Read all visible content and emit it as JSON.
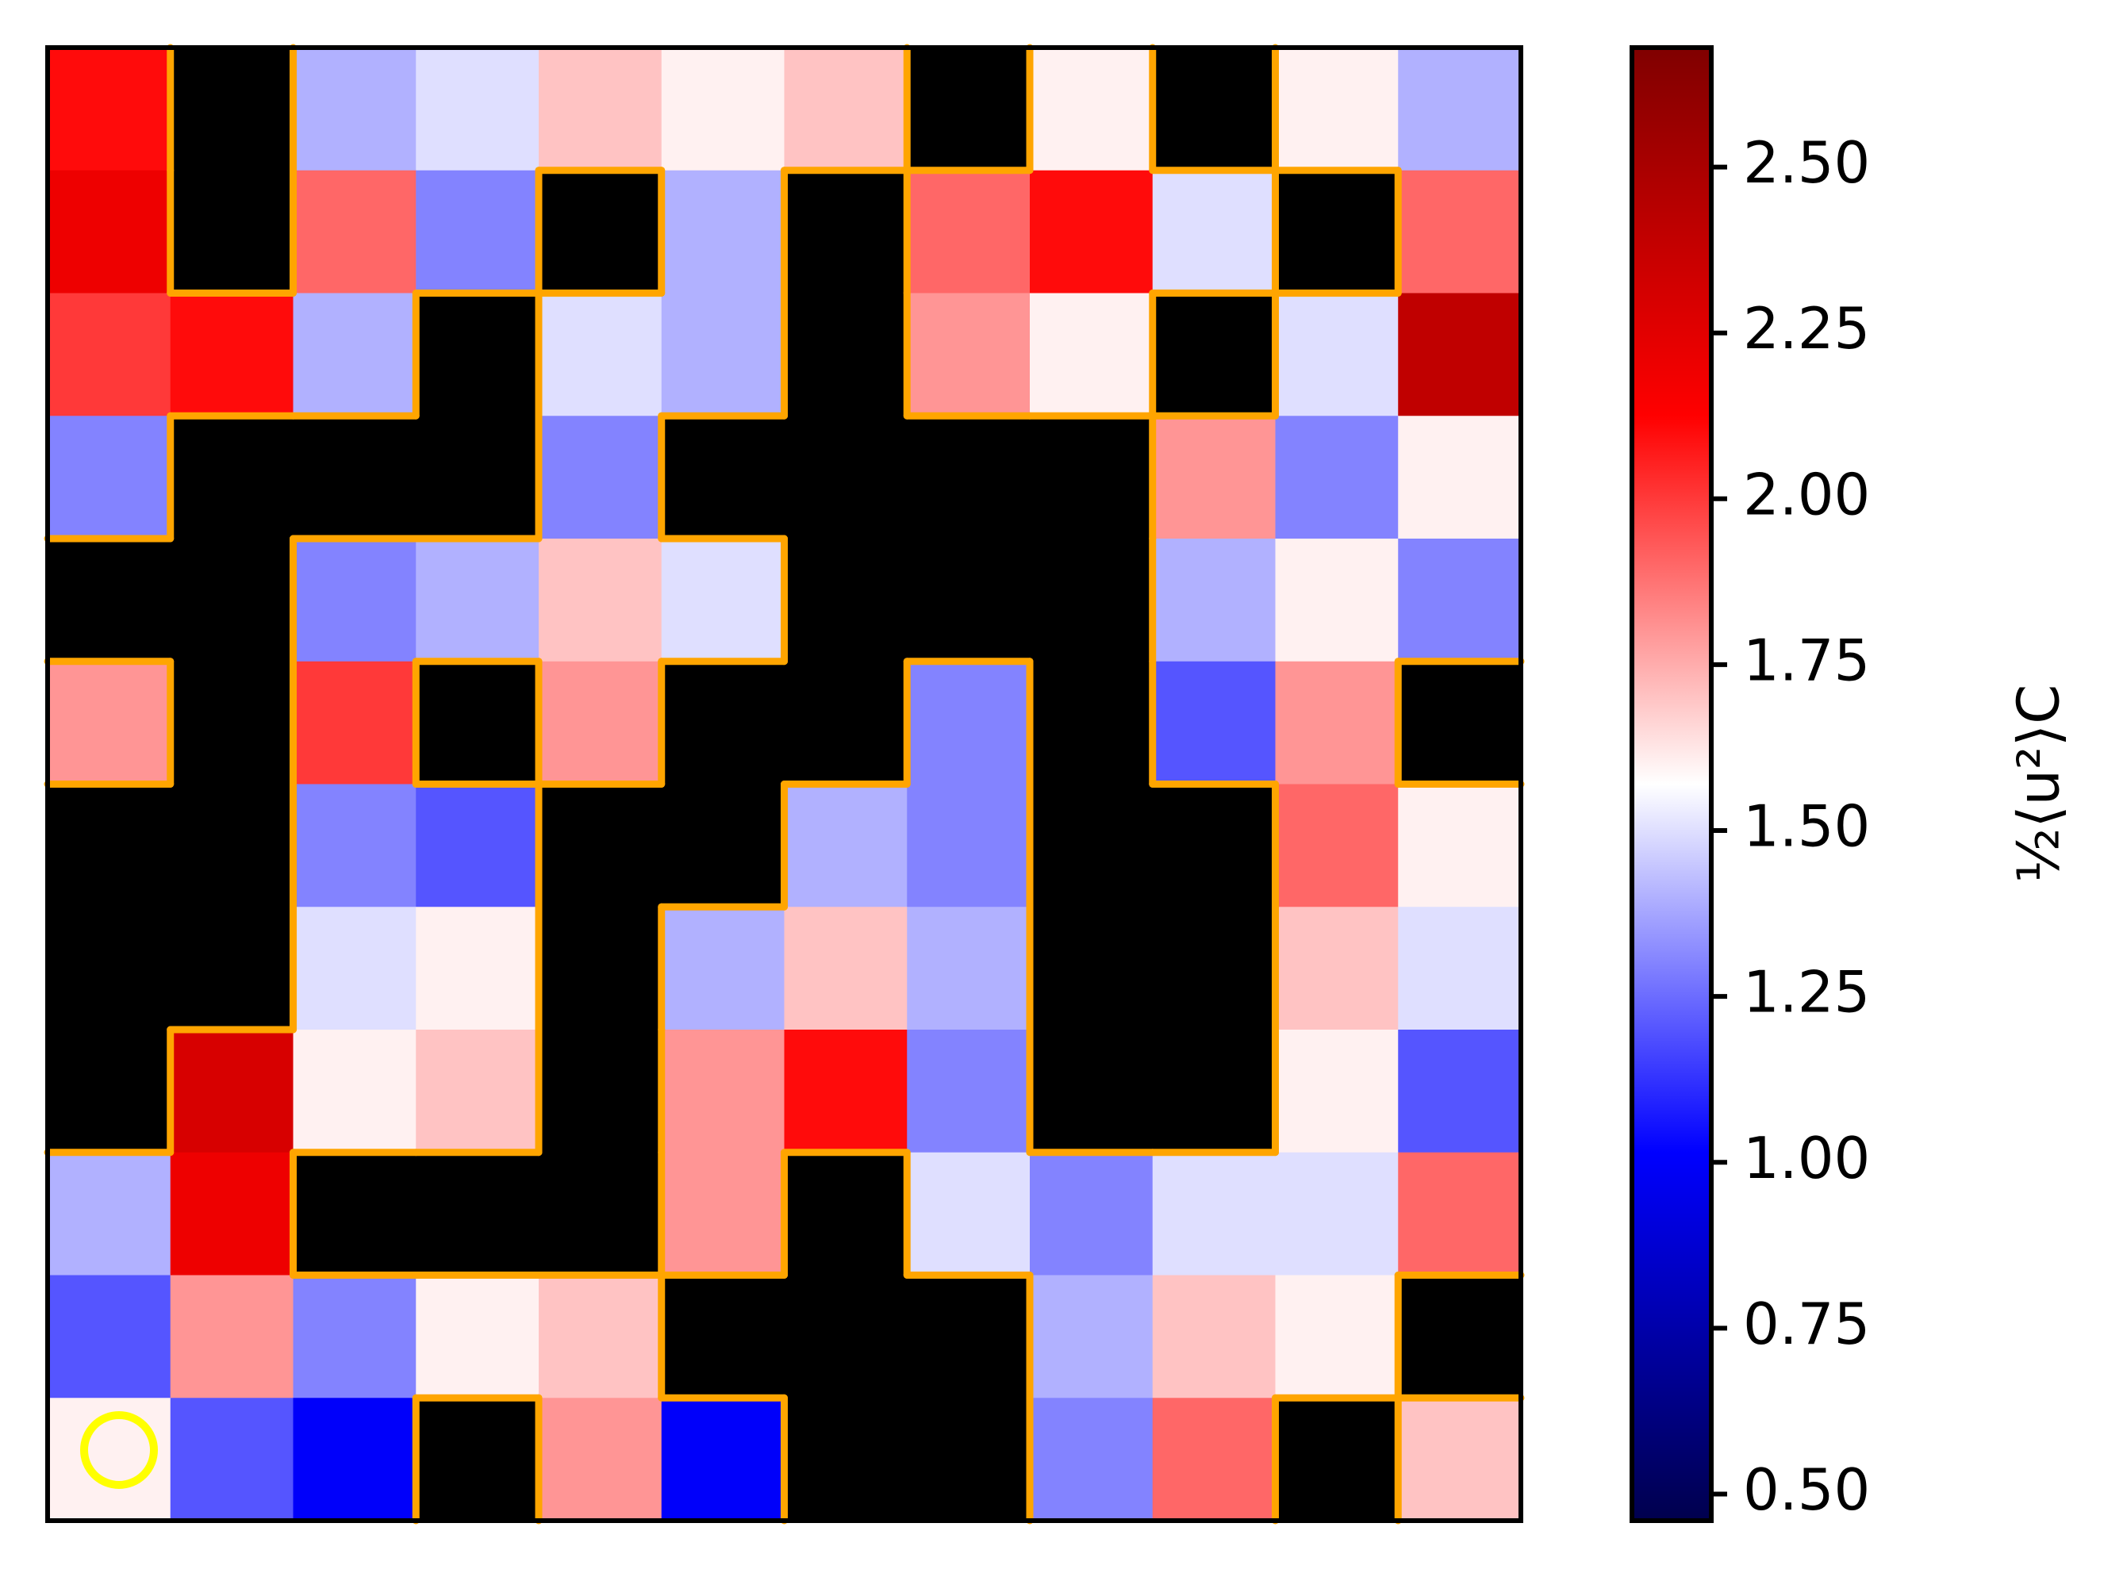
{
  "chart_data": {
    "type": "heatmap",
    "colormap": "seismic",
    "contour_color": "#ffa500",
    "mask_color": "#000000",
    "z": [
      [
        2.1,
        null,
        1.4,
        1.5,
        1.7,
        1.6,
        1.7,
        null,
        1.6,
        null,
        1.6,
        1.4
      ],
      [
        2.2,
        null,
        1.9,
        1.3,
        null,
        1.4,
        null,
        1.9,
        2.1,
        1.5,
        null,
        1.9
      ],
      [
        2.0,
        2.1,
        1.4,
        null,
        1.5,
        1.4,
        null,
        1.8,
        1.6,
        null,
        1.5,
        2.4
      ],
      [
        1.3,
        null,
        null,
        null,
        1.3,
        null,
        null,
        null,
        null,
        1.8,
        1.3,
        1.6
      ],
      [
        null,
        null,
        1.3,
        1.4,
        1.7,
        1.5,
        null,
        null,
        null,
        1.4,
        1.6,
        1.3
      ],
      [
        1.8,
        null,
        2.0,
        null,
        1.8,
        null,
        null,
        1.3,
        null,
        1.2,
        1.8,
        null
      ],
      [
        null,
        null,
        1.3,
        1.2,
        null,
        null,
        1.4,
        1.3,
        null,
        null,
        1.9,
        1.6
      ],
      [
        null,
        null,
        1.5,
        1.6,
        null,
        1.4,
        1.7,
        1.4,
        null,
        null,
        1.7,
        1.5
      ],
      [
        null,
        2.3,
        1.6,
        1.7,
        null,
        1.8,
        2.1,
        1.3,
        null,
        null,
        1.6,
        1.2
      ],
      [
        1.4,
        2.2,
        null,
        null,
        null,
        1.8,
        null,
        1.5,
        1.3,
        1.5,
        1.5,
        1.9
      ],
      [
        1.2,
        1.8,
        1.3,
        1.6,
        1.7,
        null,
        null,
        null,
        1.4,
        1.7,
        1.6,
        null
      ],
      [
        1.6,
        1.2,
        1.0,
        null,
        1.8,
        1.0,
        null,
        null,
        1.3,
        1.9,
        null,
        1.7
      ]
    ],
    "colorbar_label": "½⟨u²⟩C",
    "clim": [
      0.46,
      2.68
    ],
    "cticks": [
      {
        "value": 0.5,
        "label": "0.50"
      },
      0.75,
      {
        "value": 1.0,
        "label": "1.00"
      },
      1.25,
      {
        "value": 1.5,
        "label": "1.50"
      },
      1.75,
      {
        "value": 2.0,
        "label": "2.00"
      },
      2.25,
      {
        "value": 2.5,
        "label": "2.50"
      }
    ]
  }
}
